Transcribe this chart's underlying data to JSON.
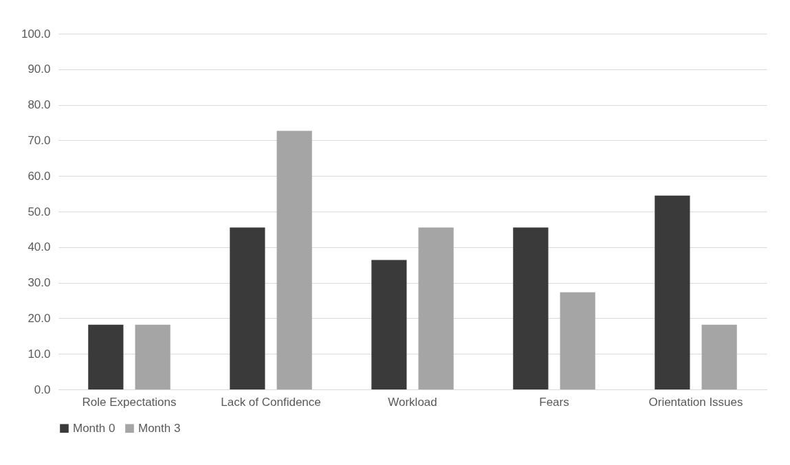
{
  "chart_data": {
    "type": "bar",
    "categories": [
      "Role Expectations",
      "Lack of Confidence",
      "Workload",
      "Fears",
      "Orientation Issues"
    ],
    "series": [
      {
        "name": "Month 0",
        "color": "#3a3a3a",
        "values": [
          18.2,
          45.5,
          36.4,
          45.5,
          54.5
        ]
      },
      {
        "name": "Month 3",
        "color": "#a5a5a5",
        "values": [
          18.2,
          72.7,
          45.5,
          27.3,
          18.2
        ]
      }
    ],
    "ylim": [
      0,
      100
    ],
    "yticks": [
      {
        "value": 0,
        "label": "0.0"
      },
      {
        "value": 10,
        "label": "10.0"
      },
      {
        "value": 20,
        "label": "20.0"
      },
      {
        "value": 30,
        "label": "30.0"
      },
      {
        "value": 40,
        "label": "40.0"
      },
      {
        "value": 50,
        "label": "50.0"
      },
      {
        "value": 60,
        "label": "60.0"
      },
      {
        "value": 70,
        "label": "70.0"
      },
      {
        "value": 80,
        "label": "80.0"
      },
      {
        "value": 90,
        "label": "90.0"
      },
      {
        "value": 100,
        "label": "100.0"
      }
    ],
    "grid": "y",
    "legend": "bottom"
  }
}
